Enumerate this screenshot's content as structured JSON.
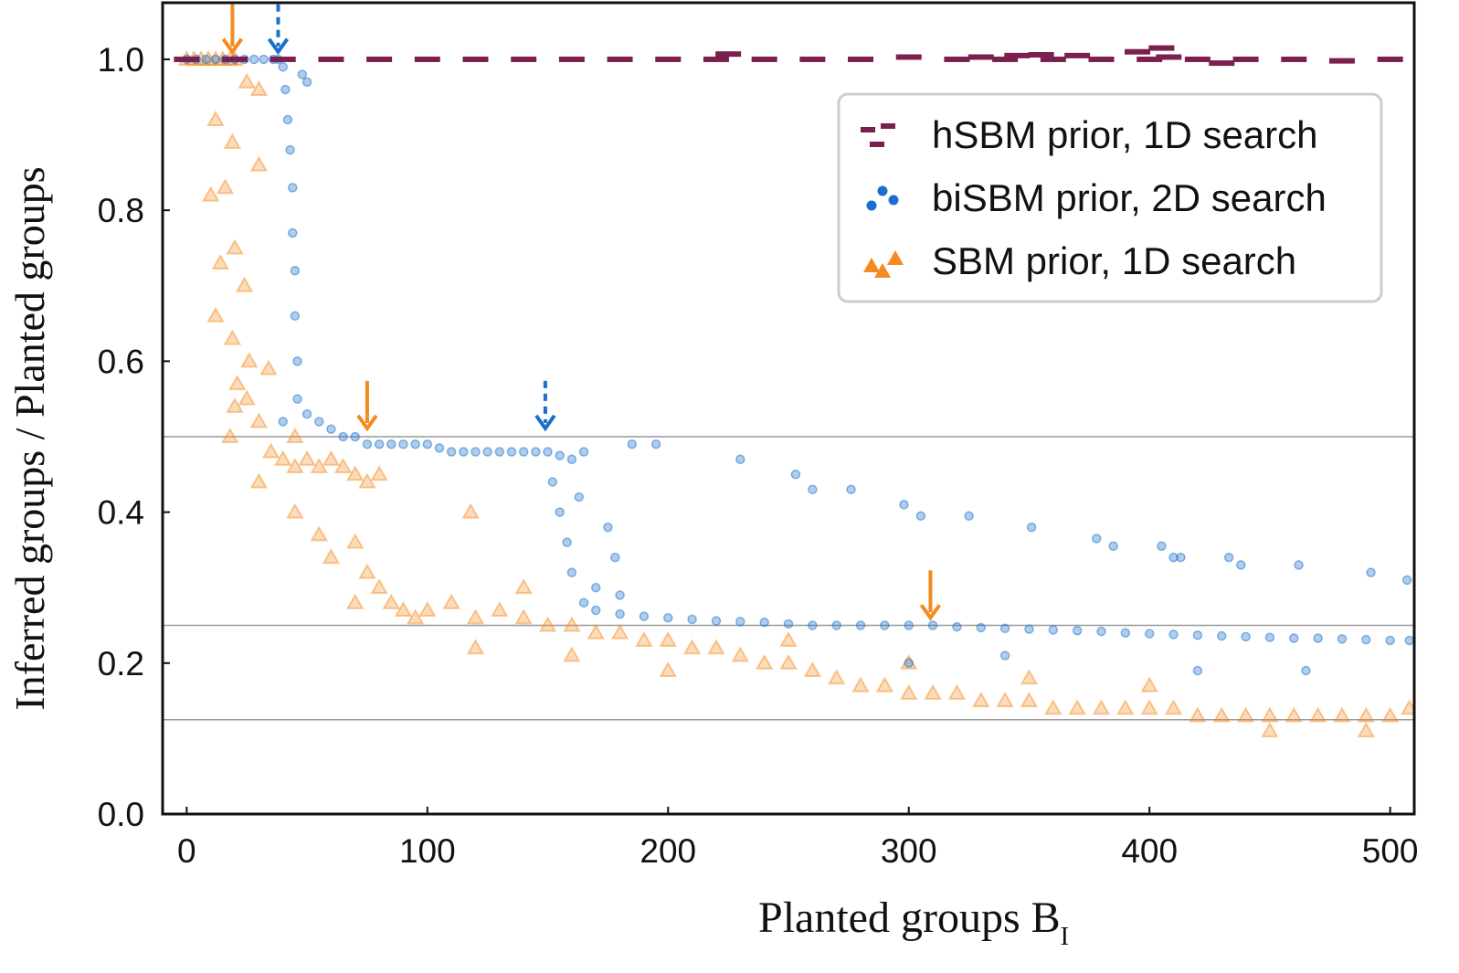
{
  "chart_data": {
    "type": "scatter",
    "xlabel": {
      "text": "Planted groups B",
      "subscript": "I"
    },
    "ylabel": "Inferred groups / Planted groups",
    "xlim": [
      -10,
      510
    ],
    "ylim": [
      0,
      1.075
    ],
    "xticks": [
      0,
      100,
      200,
      300,
      400,
      500
    ],
    "yticks": [
      {
        "value": 0,
        "label": "0.0"
      },
      0.2,
      0.4,
      0.6,
      0.8,
      {
        "value": 1,
        "label": "1.0"
      }
    ],
    "reference_lines": [
      0.5,
      0.25,
      0.125
    ],
    "legend": "upper right",
    "series": [
      {
        "name": "hSBM prior, 1D search",
        "color": "#7b1f4f",
        "marker": "dash",
        "x": [
          0,
          20,
          40,
          60,
          80,
          100,
          120,
          140,
          160,
          180,
          200,
          220,
          225,
          240,
          260,
          280,
          300,
          320,
          330,
          340,
          345,
          355,
          360,
          370,
          380,
          395,
          400,
          405,
          408,
          420,
          430,
          440,
          460,
          480,
          500
        ],
        "values": [
          1,
          1,
          1,
          1,
          1,
          1,
          1,
          1,
          1,
          1,
          1,
          1,
          1.007,
          1,
          1,
          1,
          1.003,
          1,
          1.003,
          1,
          1.005,
          1.006,
          1,
          1.005,
          1,
          1.01,
          1,
          1.015,
          1.003,
          1,
          0.995,
          1,
          1,
          0.998,
          1
        ]
      },
      {
        "name": "biSBM prior, 2D search",
        "color": "#1a6fcc",
        "marker": "circle",
        "x": [
          0,
          4,
          8,
          12,
          16,
          20,
          24,
          28,
          32,
          36,
          38,
          40,
          41,
          42,
          43,
          44,
          44,
          45,
          45,
          46,
          48,
          50,
          46,
          40,
          50,
          55,
          60,
          65,
          70,
          75,
          80,
          85,
          90,
          95,
          100,
          105,
          110,
          115,
          120,
          125,
          130,
          135,
          140,
          145,
          150,
          155,
          160,
          165,
          152,
          155,
          158,
          160,
          163,
          165,
          170,
          175,
          178,
          180,
          185,
          195,
          170,
          180,
          190,
          200,
          210,
          220,
          230,
          240,
          250,
          260,
          270,
          280,
          290,
          300,
          310,
          320,
          330,
          340,
          350,
          360,
          370,
          380,
          390,
          400,
          410,
          420,
          430,
          440,
          450,
          460,
          470,
          480,
          490,
          500,
          508,
          300,
          340,
          420,
          465,
          230,
          253,
          260,
          276,
          298,
          305,
          325,
          351,
          378,
          385,
          405,
          410,
          413,
          433,
          438,
          462,
          492,
          507
        ],
        "values": [
          1,
          1,
          1,
          1,
          1,
          1,
          1,
          1,
          1,
          1,
          1,
          0.99,
          0.96,
          0.92,
          0.88,
          0.83,
          0.77,
          0.72,
          0.66,
          0.6,
          0.98,
          0.97,
          0.55,
          0.52,
          0.53,
          0.52,
          0.51,
          0.5,
          0.5,
          0.49,
          0.49,
          0.49,
          0.49,
          0.49,
          0.49,
          0.485,
          0.48,
          0.48,
          0.48,
          0.48,
          0.48,
          0.48,
          0.48,
          0.48,
          0.48,
          0.475,
          0.47,
          0.48,
          0.44,
          0.4,
          0.36,
          0.32,
          0.42,
          0.28,
          0.3,
          0.38,
          0.34,
          0.29,
          0.49,
          0.49,
          0.27,
          0.265,
          0.262,
          0.26,
          0.258,
          0.256,
          0.255,
          0.254,
          0.252,
          0.25,
          0.25,
          0.25,
          0.25,
          0.25,
          0.25,
          0.248,
          0.247,
          0.246,
          0.245,
          0.244,
          0.243,
          0.242,
          0.24,
          0.239,
          0.238,
          0.237,
          0.236,
          0.235,
          0.234,
          0.233,
          0.233,
          0.232,
          0.231,
          0.23,
          0.23,
          0.2,
          0.21,
          0.19,
          0.19,
          0.47,
          0.45,
          0.43,
          0.43,
          0.41,
          0.395,
          0.395,
          0.38,
          0.365,
          0.355,
          0.355,
          0.34,
          0.34,
          0.34,
          0.33,
          0.33,
          0.32,
          0.31
        ]
      },
      {
        "name": "SBM prior, 1D search",
        "color": "#f58a1f",
        "marker": "triangle",
        "x": [
          0,
          3,
          6,
          9,
          12,
          15,
          18,
          20,
          12,
          19,
          30,
          25,
          10,
          16,
          30,
          20,
          14,
          24,
          12,
          19,
          26,
          21,
          34,
          25,
          20,
          18,
          30,
          35,
          40,
          45,
          50,
          55,
          60,
          65,
          70,
          75,
          80,
          45,
          55,
          60,
          45,
          30,
          118,
          70,
          75,
          70,
          80,
          85,
          90,
          95,
          100,
          110,
          120,
          130,
          140,
          150,
          160,
          170,
          180,
          190,
          200,
          210,
          220,
          230,
          240,
          250,
          260,
          270,
          280,
          290,
          300,
          310,
          320,
          330,
          340,
          350,
          360,
          370,
          380,
          390,
          400,
          410,
          420,
          430,
          440,
          450,
          460,
          470,
          480,
          490,
          500,
          508,
          160,
          200,
          250,
          300,
          350,
          400,
          450,
          490,
          120,
          140
        ],
        "values": [
          1,
          1,
          1,
          1,
          1,
          1,
          1,
          1,
          0.92,
          0.89,
          0.96,
          0.97,
          0.82,
          0.83,
          0.86,
          0.75,
          0.73,
          0.7,
          0.66,
          0.63,
          0.6,
          0.57,
          0.59,
          0.55,
          0.54,
          0.5,
          0.52,
          0.48,
          0.47,
          0.46,
          0.47,
          0.46,
          0.47,
          0.46,
          0.45,
          0.44,
          0.45,
          0.4,
          0.37,
          0.34,
          0.5,
          0.44,
          0.4,
          0.36,
          0.32,
          0.28,
          0.3,
          0.28,
          0.27,
          0.26,
          0.27,
          0.28,
          0.26,
          0.27,
          0.26,
          0.25,
          0.25,
          0.24,
          0.24,
          0.23,
          0.23,
          0.22,
          0.22,
          0.21,
          0.2,
          0.2,
          0.19,
          0.18,
          0.17,
          0.17,
          0.16,
          0.16,
          0.16,
          0.15,
          0.15,
          0.15,
          0.14,
          0.14,
          0.14,
          0.14,
          0.14,
          0.14,
          0.13,
          0.13,
          0.13,
          0.13,
          0.13,
          0.13,
          0.13,
          0.13,
          0.13,
          0.14,
          0.21,
          0.19,
          0.23,
          0.2,
          0.18,
          0.17,
          0.11,
          0.11,
          0.22,
          0.3
        ]
      }
    ],
    "arrows": [
      {
        "x": 19,
        "y": 1.01,
        "color": "#f58a1f",
        "style": "solid"
      },
      {
        "x": 38,
        "y": 1.01,
        "color": "#1a6fcc",
        "style": "dashed"
      },
      {
        "x": 75,
        "y": 0.511,
        "color": "#f58a1f",
        "style": "solid"
      },
      {
        "x": 149,
        "y": 0.511,
        "color": "#1a6fcc",
        "style": "dashed"
      },
      {
        "x": 309,
        "y": 0.26,
        "color": "#f58a1f",
        "style": "solid"
      }
    ]
  }
}
